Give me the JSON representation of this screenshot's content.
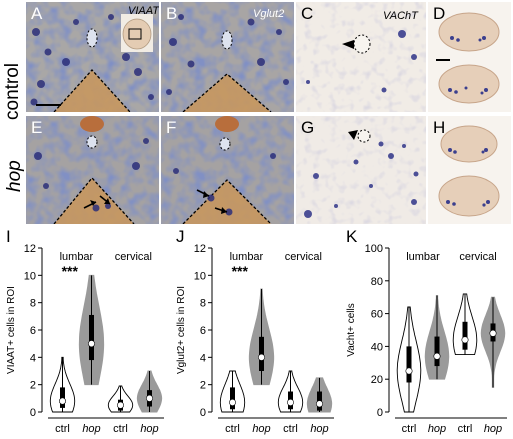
{
  "figure": {
    "rows": {
      "top": "control",
      "bottom": "hop"
    },
    "panels": [
      {
        "id": "A",
        "gene": "VIAAT"
      },
      {
        "id": "B",
        "gene": "Vglut2"
      },
      {
        "id": "C",
        "gene": "VAChT"
      },
      {
        "id": "D",
        "gene": ""
      },
      {
        "id": "E",
        "gene": ""
      },
      {
        "id": "F",
        "gene": ""
      },
      {
        "id": "G",
        "gene": ""
      },
      {
        "id": "H",
        "gene": ""
      }
    ]
  },
  "chart_data": [
    {
      "panel": "I",
      "type": "violin",
      "ylabel": "VIAAT+ cells in ROI",
      "ylim": [
        0,
        12
      ],
      "yticks": [
        0,
        2,
        4,
        6,
        8,
        10,
        12
      ],
      "categories": [
        "ctrl",
        "hop",
        "ctrl",
        "hop"
      ],
      "groups": [
        "lumbar",
        "cervical"
      ],
      "significance": "***",
      "series": [
        {
          "group": "lumbar",
          "cond": "ctrl",
          "median": 0.8,
          "q1": 0.3,
          "q3": 1.8,
          "min": 0,
          "max": 4,
          "fill": "white"
        },
        {
          "group": "lumbar",
          "cond": "hop",
          "median": 5.0,
          "q1": 3.8,
          "q3": 7.1,
          "min": 2,
          "max": 10,
          "fill": "grey"
        },
        {
          "group": "cervical",
          "cond": "ctrl",
          "median": 0.5,
          "q1": 0.1,
          "q3": 0.9,
          "min": 0,
          "max": 1.9,
          "fill": "white"
        },
        {
          "group": "cervical",
          "cond": "hop",
          "median": 1.0,
          "q1": 0.4,
          "q3": 1.6,
          "min": 0,
          "max": 3,
          "fill": "grey"
        }
      ]
    },
    {
      "panel": "J",
      "type": "violin",
      "ylabel": "Vglut2+ cells in ROI",
      "ylim": [
        0,
        12
      ],
      "yticks": [
        0,
        2,
        4,
        6,
        8,
        10,
        12
      ],
      "categories": [
        "ctrl",
        "hop",
        "ctrl",
        "hop"
      ],
      "groups": [
        "lumbar",
        "cervical"
      ],
      "significance": "***",
      "series": [
        {
          "group": "lumbar",
          "cond": "ctrl",
          "median": 0.7,
          "q1": 0.2,
          "q3": 1.8,
          "min": 0,
          "max": 3,
          "fill": "white"
        },
        {
          "group": "lumbar",
          "cond": "hop",
          "median": 4.0,
          "q1": 3.0,
          "q3": 5.5,
          "min": 2,
          "max": 9,
          "fill": "grey"
        },
        {
          "group": "cervical",
          "cond": "ctrl",
          "median": 0.7,
          "q1": 0.2,
          "q3": 1.5,
          "min": 0,
          "max": 3,
          "fill": "white"
        },
        {
          "group": "cervical",
          "cond": "hop",
          "median": 0.6,
          "q1": 0.1,
          "q3": 1.5,
          "min": 0,
          "max": 2.5,
          "fill": "grey"
        }
      ]
    },
    {
      "panel": "K",
      "type": "violin",
      "ylabel": "Vacht+ cells",
      "ylim": [
        0,
        100
      ],
      "yticks": [
        0,
        20,
        40,
        60,
        80,
        100
      ],
      "categories": [
        "ctrl",
        "hop",
        "ctrl",
        "hop"
      ],
      "groups": [
        "lumbar",
        "cervical"
      ],
      "significance": "",
      "series": [
        {
          "group": "lumbar",
          "cond": "ctrl",
          "median": 25,
          "q1": 18,
          "q3": 40,
          "min": 0,
          "max": 64,
          "fill": "white"
        },
        {
          "group": "lumbar",
          "cond": "hop",
          "median": 34,
          "q1": 28,
          "q3": 46,
          "min": 20,
          "max": 71,
          "fill": "grey"
        },
        {
          "group": "cervical",
          "cond": "ctrl",
          "median": 44,
          "q1": 38,
          "q3": 55,
          "min": 35,
          "max": 72,
          "fill": "white"
        },
        {
          "group": "cervical",
          "cond": "hop",
          "median": 48,
          "q1": 43,
          "q3": 54,
          "min": 15,
          "max": 70,
          "fill": "grey"
        }
      ]
    }
  ]
}
